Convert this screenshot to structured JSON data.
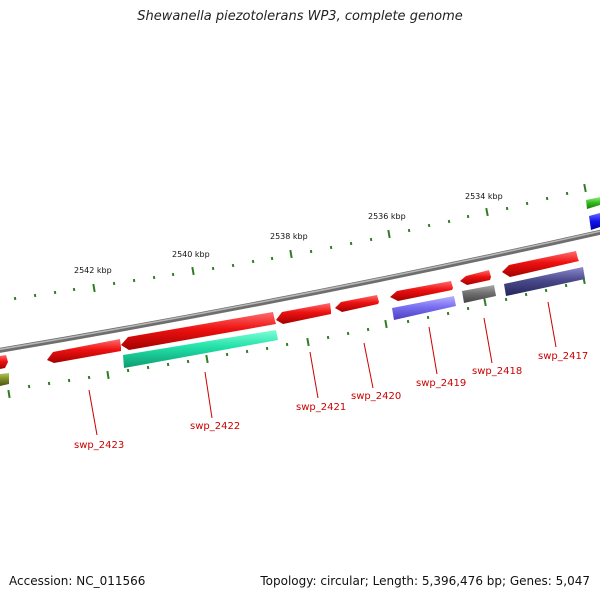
{
  "title": "Shewanella piezotolerans WP3, complete genome",
  "accession": "Accession: NC_011566",
  "summary": "Topology: circular; Length: 5,396,476 bp; Genes: 5,047",
  "colors": {
    "backbone": "#8a8a8a",
    "tick": "#2e7d22",
    "forward_gene": "#ee1111",
    "other_track_teal": "#22e0a8",
    "other_track_purple": "#7a6ff0",
    "other_track_grey": "#707070",
    "other_track_navy": "#4a4a8c",
    "label": "#cc0000"
  },
  "scale_labels": [
    "2542 kbp",
    "2540 kbp",
    "2538 kbp",
    "2536 kbp",
    "2534 kbp"
  ],
  "genes": [
    {
      "label": "swp_2423"
    },
    {
      "label": "swp_2422"
    },
    {
      "label": "swp_2421"
    },
    {
      "label": "swp_2420"
    },
    {
      "label": "swp_2419"
    },
    {
      "label": "swp_2418"
    },
    {
      "label": "swp_2417"
    }
  ]
}
